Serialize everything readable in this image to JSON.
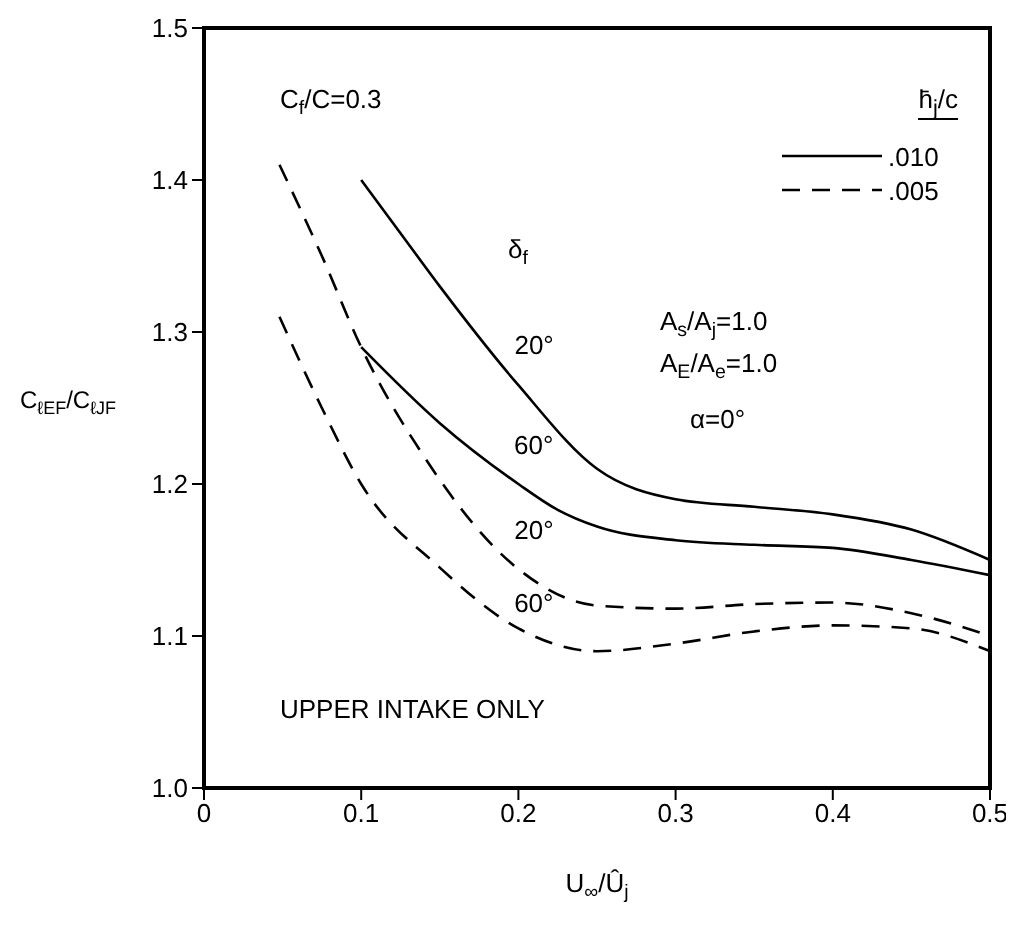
{
  "chart_data": {
    "type": "line",
    "xlabel": "U$_{∞}$/Û$_{j}$",
    "ylabel": "C$_{ℓEF}$/C$_{ℓJF}$",
    "legend_title": "h̄$_{j}$/c",
    "legend": "top right",
    "marker": "none",
    "xlim": [
      0,
      0.5
    ],
    "xticks": [
      0,
      0.1,
      0.2,
      0.3,
      0.4,
      0.5
    ],
    "ylim": [
      1.0,
      1.5
    ],
    "yticks": [
      {
        "value": 1.0,
        "label": "1.0"
      },
      1.1,
      1.2,
      1.3,
      1.4,
      1.5
    ],
    "series": [
      {
        "name": ".010",
        "color": "#000000",
        "line_style": "solid",
        "x": [
          0.1,
          0.125,
          0.15,
          0.2,
          0.25,
          0.3,
          0.35,
          0.4,
          0.45,
          0.5
        ],
        "values": [
          1.4,
          1.365,
          1.33,
          1.265,
          1.21,
          1.19,
          1.185,
          1.18,
          1.17,
          1.15
        ]
      },
      {
        "color": "#000000",
        "line_style": "solid",
        "x": [
          0.1,
          0.15,
          0.2,
          0.225,
          0.25,
          0.3,
          0.35,
          0.4,
          0.45,
          0.5
        ],
        "values": [
          1.29,
          1.24,
          1.2,
          1.183,
          1.172,
          1.163,
          1.16,
          1.158,
          1.15,
          1.14
        ]
      },
      {
        "name": ".005",
        "color": "#000000",
        "line_style": "dashed",
        "x": [
          0.048,
          0.075,
          0.1,
          0.14,
          0.2,
          0.25,
          0.3,
          0.35,
          0.4,
          0.45,
          0.5
        ],
        "values": [
          1.41,
          1.35,
          1.29,
          1.218,
          1.144,
          1.12,
          1.118,
          1.121,
          1.122,
          1.115,
          1.1
        ]
      },
      {
        "color": "#000000",
        "line_style": "dashed",
        "x": [
          0.048,
          0.075,
          0.1,
          0.15,
          0.2,
          0.25,
          0.3,
          0.35,
          0.4,
          0.45,
          0.5
        ],
        "values": [
          1.31,
          1.25,
          1.2,
          1.145,
          1.105,
          1.09,
          1.095,
          1.103,
          1.107,
          1.105,
          1.09
        ]
      }
    ],
    "annotations": [
      "C$_{f}$/C=0.3",
      "δ$_{f}$",
      "A$_{s}$/A$_{j}$=1.0",
      "A$_{E}$/A$_{e}$=1.0",
      "α=0°",
      "UPPER INTAKE ONLY",
      {
        "text": "20°",
        "x": 0.21,
        "y": 1.255
      },
      {
        "text": "60°",
        "x": 0.225,
        "y": 1.183
      },
      {
        "text": "20°",
        "x": 0.215,
        "y": 1.135
      },
      {
        "text": "60°",
        "x": 0.22,
        "y": 1.099
      }
    ]
  }
}
